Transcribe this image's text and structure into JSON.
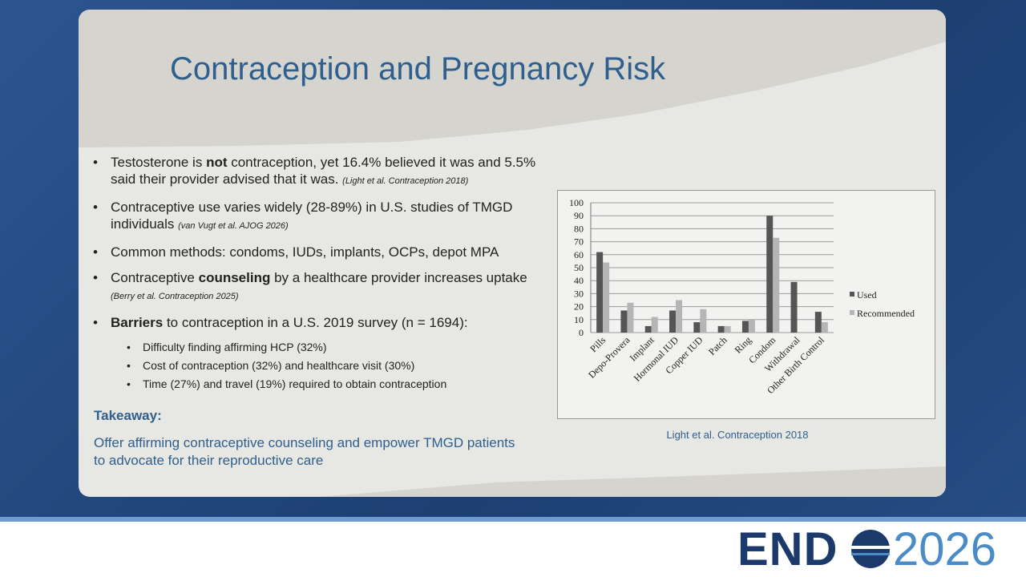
{
  "title": "Contraception and Pregnancy Risk",
  "bullets": [
    {
      "runs": [
        {
          "text": "Testosterone is "
        },
        {
          "text": "not",
          "bold": true
        },
        {
          "text": " contraception, yet 16.4% believed it was and 5.5% said their provider advised that it was."
        }
      ],
      "citation": "(Light et al. Contraception 2018)"
    },
    {
      "runs": [
        {
          "text": "Contraceptive use varies widely (28-89%) in U.S. studies of TMGD individuals"
        }
      ],
      "citation": "(van Vugt et al. AJOG 2026)"
    },
    {
      "runs": [
        {
          "text": "Common methods: condoms, IUDs, implants, OCPs, depot MPA"
        }
      ]
    },
    {
      "runs": [
        {
          "text": "Contraceptive "
        },
        {
          "text": "counseling",
          "bold": true
        },
        {
          "text": " by a healthcare provider increases uptake"
        }
      ],
      "citation": "(Berry et al. Contraception 2025)"
    },
    {
      "runs": [
        {
          "text": "Barriers",
          "bold": true
        },
        {
          "text": " to contraception in a U.S. 2019 survey (n = 1694):"
        }
      ],
      "sub": [
        "Difficulty finding affirming HCP (32%)",
        "Cost of contraception (32%) and healthcare visit (30%)",
        "Time (27%) and travel (19%) required to obtain contraception"
      ]
    }
  ],
  "takeaway": {
    "heading": "Takeaway:",
    "text": "Offer affirming contraceptive counseling and empower TMGD patients to advocate for their reproductive care"
  },
  "logo": {
    "left": "END",
    "right": "2026"
  },
  "chart_data": {
    "type": "bar",
    "caption": "Light et al. Contraception 2018",
    "categories": [
      "Pills",
      "Depo-Provera",
      "Implant",
      "Hormonal IUD",
      "Copper IUD",
      "Patch",
      "Ring",
      "Condom",
      "Withdrawal",
      "Other Birth Control"
    ],
    "series": [
      {
        "name": "Used",
        "color": "#555555",
        "values": [
          62,
          17,
          5,
          17,
          8,
          5,
          9,
          90,
          39,
          16
        ]
      },
      {
        "name": "Recommended",
        "color": "#b5b5b5",
        "values": [
          54,
          23,
          12,
          25,
          18,
          5,
          10,
          73,
          0,
          8
        ]
      }
    ],
    "ylim": [
      0,
      100
    ],
    "yticks": [
      0,
      10,
      20,
      30,
      40,
      50,
      60,
      70,
      80,
      90,
      100
    ],
    "grid": true,
    "legend": "right"
  }
}
